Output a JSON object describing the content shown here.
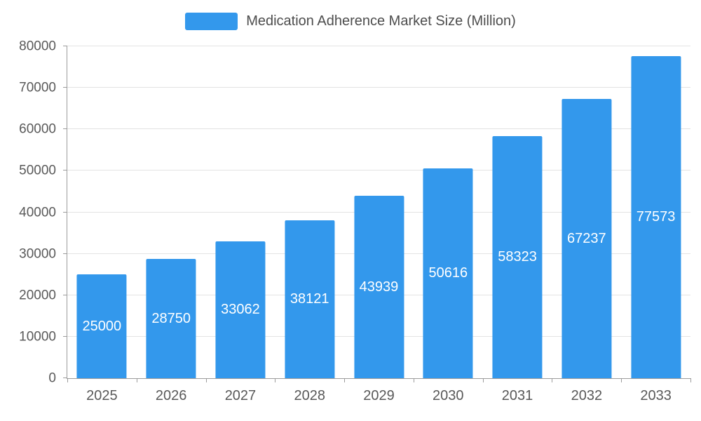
{
  "chart_data": {
    "type": "bar",
    "title": "Medication Adherence Market Size (Million)",
    "categories": [
      "2025",
      "2026",
      "2027",
      "2028",
      "2029",
      "2030",
      "2031",
      "2032",
      "2033"
    ],
    "values": [
      25000,
      28750,
      33062,
      38121,
      43939,
      50616,
      58323,
      67237,
      77573
    ],
    "series": [
      {
        "name": "Medication Adherence Market Size (Million)",
        "values": [
          25000,
          28750,
          33062,
          38121,
          43939,
          50616,
          58323,
          67237,
          77573
        ]
      }
    ],
    "xlabel": "",
    "ylabel": "",
    "ylim": [
      0,
      80000
    ],
    "y_ticks": [
      0,
      10000,
      20000,
      30000,
      40000,
      50000,
      60000,
      70000,
      80000
    ],
    "grid": true,
    "legend_position": "top",
    "value_labels": "inside-center"
  },
  "colors": {
    "bar": "#3398EC",
    "bar_label": "#ffffff",
    "axis_line": "#9b9b9b",
    "axis_text": "#595959",
    "grid_line": "#e3e3e3",
    "legend_text": "#4d4d4d",
    "background": "#ffffff"
  },
  "legend": {
    "label": "Medication Adherence Market Size (Million)",
    "swatch": "bar-color-swatch"
  }
}
